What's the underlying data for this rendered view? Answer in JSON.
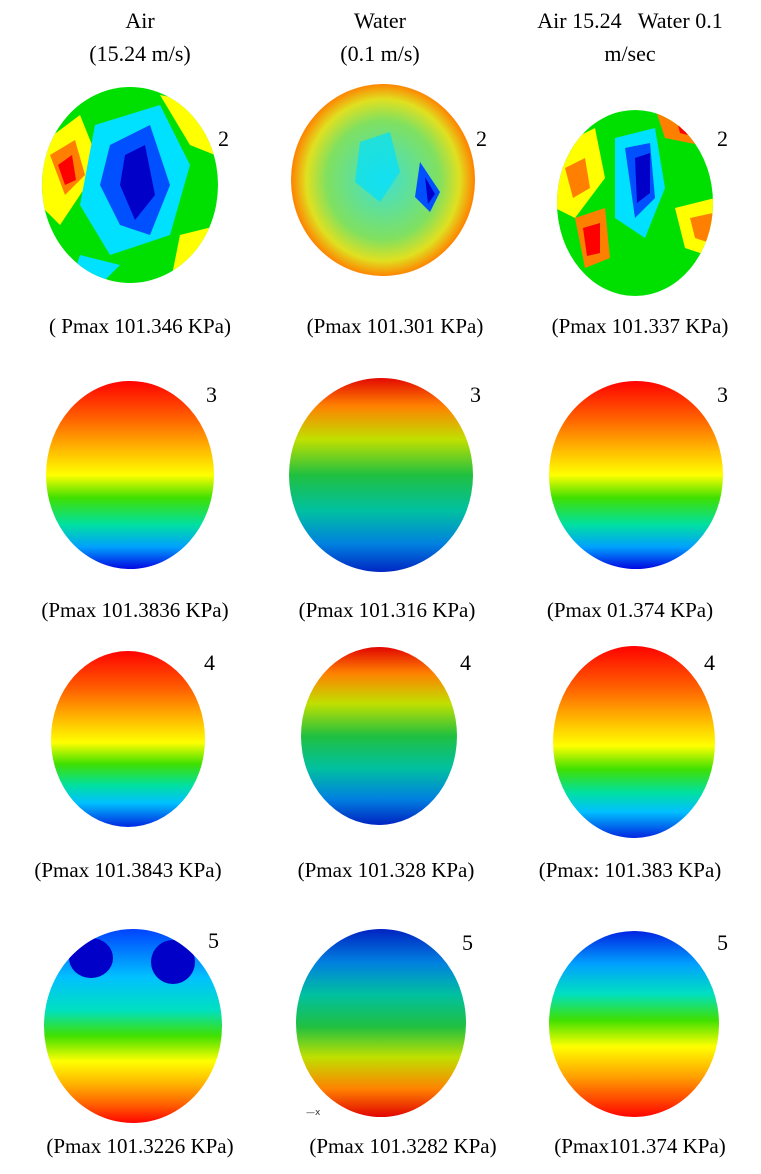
{
  "headers": [
    {
      "line1": "Air",
      "line2": "(15.24 m/s)"
    },
    {
      "line1": "Water",
      "line2": "(0.1 m/s)"
    },
    {
      "line1": "Air 15.24   Water 0.1",
      "line2": "m/sec"
    }
  ],
  "rows": [
    {
      "label": "2",
      "captions": [
        "( Pmax 101.346 KPa)",
        "(Pmax 101.301 KPa)",
        "(Pmax 101.337 KPa)"
      ]
    },
    {
      "label": "3",
      "captions": [
        "(Pmax 101.3836 KPa)",
        "(Pmax 101.316 KPa)",
        "(Pmax 01.374 KPa)"
      ]
    },
    {
      "label": "4",
      "captions": [
        "(Pmax 101.3843 KPa)",
        "(Pmax 101.328 KPa)",
        "(Pmax: 101.383 KPa)"
      ]
    },
    {
      "label": "5",
      "captions": [
        "(Pmax 101.3226 KPa)",
        "(Pmax 101.3282 KPa)",
        "(Pmax101.374 KPa)"
      ]
    }
  ],
  "axis_mark": "—x",
  "colors": {
    "red": "#ff0000",
    "orange": "#ff8000",
    "yellow": "#ffff00",
    "green": "#00e000",
    "cyan": "#00e0ff",
    "blue": "#0050ff",
    "navy": "#0000c8"
  }
}
